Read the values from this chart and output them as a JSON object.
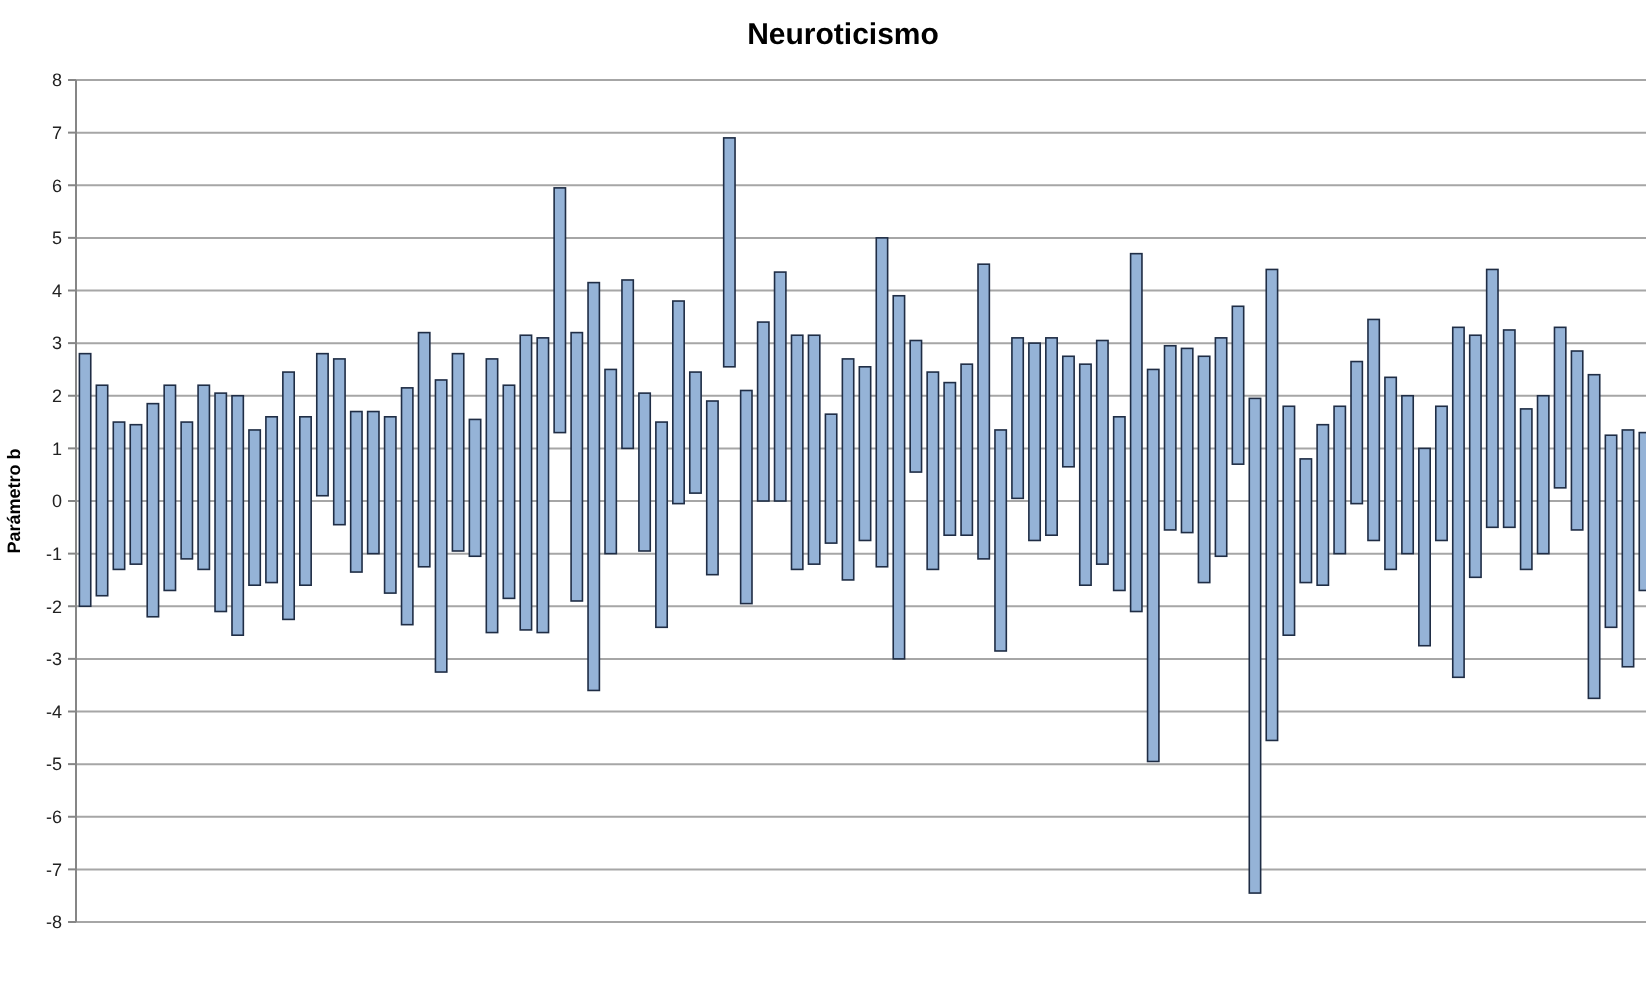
{
  "chart_data": {
    "type": "bar",
    "title": "Neuroticismo",
    "ylabel": "Parámetro b",
    "categories": [
      null,
      null,
      null,
      null,
      null,
      null,
      null,
      null,
      null,
      null,
      null,
      null,
      null,
      null,
      null,
      null,
      null,
      null,
      null,
      null,
      null,
      null,
      null,
      null,
      null,
      null,
      null,
      null,
      null,
      null,
      null,
      null,
      null,
      null,
      null,
      null,
      null,
      null,
      null,
      null,
      null,
      null,
      null,
      null,
      null,
      null,
      null,
      null,
      null,
      null,
      null,
      null,
      null,
      null,
      null,
      null,
      null,
      null,
      null,
      null,
      null,
      null,
      null,
      null,
      null,
      null,
      null,
      null,
      null,
      null,
      null,
      null,
      null,
      null,
      null,
      null,
      null,
      null,
      null,
      null,
      null,
      null,
      null,
      null,
      null,
      null,
      null,
      null,
      null,
      null,
      null,
      null,
      null
    ],
    "base": [
      -2.0,
      -1.8,
      -1.3,
      -1.2,
      -2.2,
      -1.7,
      -1.1,
      -1.3,
      -2.1,
      -2.55,
      -1.6,
      -1.55,
      -2.25,
      -1.6,
      0.1,
      -0.45,
      -1.35,
      -1.0,
      -1.75,
      -2.35,
      -1.25,
      -3.25,
      -0.95,
      -1.05,
      -2.5,
      -1.85,
      -2.45,
      -2.5,
      1.3,
      -1.9,
      -3.6,
      -1.0,
      1.0,
      -0.95,
      -2.4,
      -0.05,
      0.15,
      -1.4,
      2.55,
      -1.95,
      0,
      0,
      -1.3,
      -1.2,
      -0.8,
      -1.5,
      -0.75,
      -1.25,
      -3.0,
      0.55,
      -1.3,
      -0.65,
      -0.65,
      -1.1,
      -2.85,
      0.05,
      -0.75,
      -0.65,
      0.65,
      -1.6,
      -1.2,
      -1.7,
      -2.1,
      -4.95,
      -0.55,
      -0.6,
      -1.55,
      -1.05,
      0.7,
      -7.45,
      -4.55,
      -2.55,
      -1.55,
      -1.6,
      -1.0,
      -0.05,
      -0.75,
      -1.3,
      -1.0,
      -2.75,
      -0.75,
      -3.35,
      -1.45,
      -0.5,
      -0.5,
      -1.3,
      -1.0,
      0.25,
      -0.55,
      -3.75,
      -2.4,
      -3.15,
      -1.7
    ],
    "values": [
      4.8,
      4.0,
      2.8,
      2.65,
      4.05,
      3.9,
      2.6,
      3.5,
      4.15,
      4.55,
      2.95,
      3.15,
      4.7,
      3.2,
      2.7,
      3.15,
      3.05,
      2.7,
      3.35,
      4.5,
      4.45,
      5.55,
      3.75,
      2.6,
      5.2,
      4.05,
      5.6,
      5.6,
      4.65,
      5.1,
      7.75,
      3.5,
      3.2,
      3.0,
      3.9,
      3.85,
      2.3,
      3.3,
      4.35,
      4.05,
      3.4,
      4.35,
      4.45,
      4.35,
      2.45,
      4.2,
      3.3,
      6.25,
      6.9,
      2.5,
      3.75,
      2.9,
      3.25,
      5.6,
      4.2,
      3.05,
      3.75,
      3.75,
      2.1,
      4.2,
      4.25,
      3.3,
      6.8,
      7.45,
      3.5,
      3.5,
      4.3,
      4.15,
      3.0,
      9.4,
      8.95,
      4.35,
      2.35,
      3.05,
      2.8,
      2.7,
      4.2,
      3.65,
      3.0,
      3.75,
      2.55,
      6.65,
      4.6,
      4.9,
      3.75,
      3.05,
      3.0,
      3.05,
      3.4,
      6.15,
      3.65,
      4.5,
      3.0
    ],
    "color": "#95b3d7",
    "ylim": [
      -8,
      8
    ],
    "yticks": [
      -8,
      -7,
      -6,
      -5,
      -4,
      -3,
      -2,
      -1,
      0,
      1,
      2,
      3,
      4,
      5,
      6,
      7,
      8
    ],
    "grid": "y"
  }
}
